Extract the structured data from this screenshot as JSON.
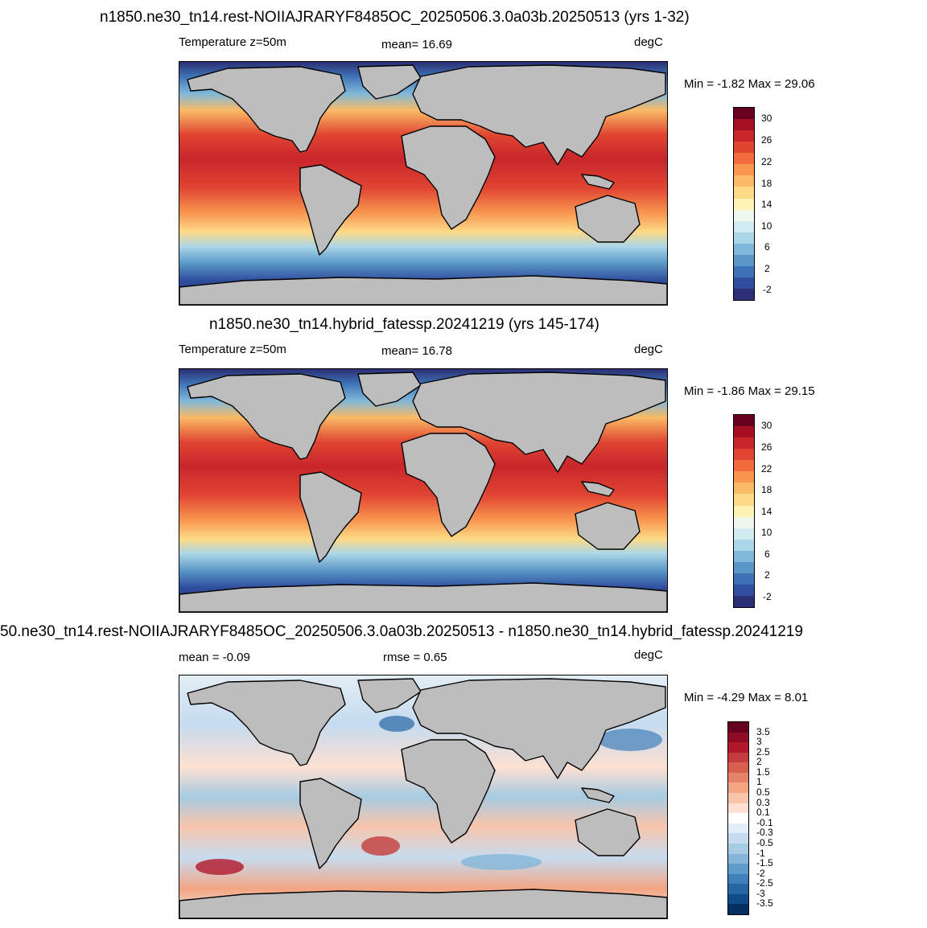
{
  "panels": [
    {
      "title": "n1850.ne30_tn14.rest-NOIIAJRARYF8485OC_20250506.3.0a03b.20250513 (yrs 1-32)",
      "left_label": "Temperature z=50m",
      "center_label": "mean=  16.69",
      "right_label": "degC",
      "minmax": "Min =  -1.82 Max =  29.06",
      "colorbar_ticks": [
        "30",
        "26",
        "22",
        "18",
        "14",
        "10",
        "6",
        "2",
        "-2"
      ],
      "colorbar_colors": [
        "#67001f",
        "#a50f22",
        "#c8262b",
        "#e04532",
        "#f06c3c",
        "#f8954f",
        "#fbba66",
        "#fdda86",
        "#fef2b4",
        "#eef8ee",
        "#d2ebf0",
        "#abd6e7",
        "#7fb8da",
        "#5a97c8",
        "#3d73b6",
        "#2f4e9d",
        "#2c2f75"
      ]
    },
    {
      "title": "n1850.ne30_tn14.hybrid_fatessp.20241219 (yrs 145-174)",
      "left_label": "Temperature z=50m",
      "center_label": "mean=  16.78",
      "right_label": "degC",
      "minmax": "Min =  -1.86 Max =  29.15",
      "colorbar_ticks": [
        "30",
        "26",
        "22",
        "18",
        "14",
        "10",
        "6",
        "2",
        "-2"
      ],
      "colorbar_colors": [
        "#67001f",
        "#a50f22",
        "#c8262b",
        "#e04532",
        "#f06c3c",
        "#f8954f",
        "#fbba66",
        "#fdda86",
        "#fef2b4",
        "#eef8ee",
        "#d2ebf0",
        "#abd6e7",
        "#7fb8da",
        "#5a97c8",
        "#3d73b6",
        "#2f4e9d",
        "#2c2f75"
      ]
    },
    {
      "title": "50.ne30_tn14.rest-NOIIAJRARYF8485OC_20250506.3.0a03b.20250513 - n1850.ne30_tn14.hybrid_fatessp.20241219",
      "left_label": "mean =  -0.09",
      "center_label": "rmse =   0.65",
      "right_label": "degC",
      "minmax": "Min =  -4.29 Max =   8.01",
      "colorbar_ticks": [
        "3.5",
        "3",
        "2.5",
        "2",
        "1.5",
        "1",
        "0.5",
        "0.3",
        "0.1",
        "-0.1",
        "-0.3",
        "-0.5",
        "-1",
        "-1.5",
        "-2",
        "-2.5",
        "-3",
        "-3.5"
      ],
      "colorbar_colors": [
        "#67001f",
        "#8e0c25",
        "#b2182b",
        "#c43c3c",
        "#d6604d",
        "#e58368",
        "#f4a582",
        "#f8c5ab",
        "#fde0d2",
        "#ffffff",
        "#e3eef6",
        "#c6dbef",
        "#a6cbe3",
        "#85b6d9",
        "#5e9ccc",
        "#3f80bb",
        "#2566a5",
        "#0e4c8a",
        "#053061"
      ]
    }
  ],
  "colors": {
    "land": "#bdbdbd",
    "coast": "#000000"
  }
}
